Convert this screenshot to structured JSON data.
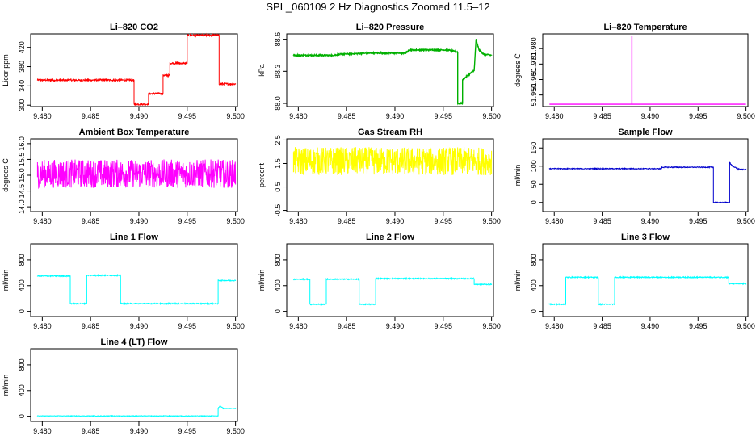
{
  "figure_title": "SPL_060109  2 Hz Diagnostics Zoomed 11.5–12",
  "chart_data": [
    {
      "type": "line",
      "title": "Li–820 CO2",
      "ylabel": "Licor ppm",
      "color": "#ff0000",
      "xlim": [
        9.4788,
        9.5002
      ],
      "ylim": [
        297,
        448
      ],
      "xticks": [
        "9.480",
        "9.485",
        "9.490",
        "9.495",
        "9.500"
      ],
      "yticks": [
        "300",
        "340",
        "380",
        "420"
      ],
      "x": [
        9.4795,
        9.4895,
        9.4895,
        9.491,
        9.491,
        9.4925,
        9.4925,
        9.4932,
        9.4932,
        9.495,
        9.495,
        9.4983,
        9.4983,
        9.5
      ],
      "y": [
        352,
        352,
        302,
        302,
        324,
        324,
        362,
        362,
        387,
        387,
        445,
        445,
        344,
        344
      ],
      "noise": 2
    },
    {
      "type": "line",
      "title": "Li–820 Pressure",
      "ylabel": "kPa",
      "color": "#00b000",
      "xlim": [
        9.4788,
        9.5002
      ],
      "ylim": [
        87.97,
        88.65
      ],
      "xticks": [
        "9.480",
        "9.485",
        "9.490",
        "9.495",
        "9.500"
      ],
      "yticks": [
        "88.0",
        "88.3",
        "88.6"
      ],
      "x": [
        9.4795,
        9.4835,
        9.4845,
        9.4875,
        9.4911,
        9.4915,
        9.4955,
        9.4965,
        9.4965,
        9.497,
        9.497,
        9.4982,
        9.4982,
        9.4984,
        9.4987,
        9.4992,
        9.5
      ],
      "y": [
        88.45,
        88.45,
        88.46,
        88.47,
        88.47,
        88.5,
        88.5,
        88.48,
        88.0,
        88.0,
        88.22,
        88.31,
        88.3,
        88.6,
        88.5,
        88.46,
        88.45
      ],
      "noise": 0.006
    },
    {
      "type": "line",
      "title": "Li–820 Temperature",
      "ylabel": "degrees C",
      "color": "#ff00ff",
      "xlim": [
        9.4788,
        9.5002
      ],
      "ylim": [
        51.9425,
        51.9895
      ],
      "xticks": [
        "9.480",
        "9.485",
        "9.490",
        "9.495",
        "9.500"
      ],
      "yticks": [
        "51.950",
        "51.960",
        "51.970",
        "51.980"
      ],
      "x": [
        9.4795,
        9.4881,
        9.4881,
        9.4881,
        9.5
      ],
      "y": [
        51.944,
        51.944,
        51.988,
        51.944,
        51.944
      ],
      "noise": 0
    },
    {
      "type": "line",
      "title": "Ambient Box Temperature",
      "ylabel": "degrees C",
      "color": "#ff00ff",
      "xlim": [
        9.4788,
        9.5002
      ],
      "ylim": [
        13.85,
        16.15
      ],
      "xticks": [
        "9.480",
        "9.485",
        "9.490",
        "9.495",
        "9.500"
      ],
      "yticks": [
        "14.0",
        "14.5",
        "15.0",
        "15.5",
        "16.0"
      ],
      "x": [
        9.4795,
        9.5
      ],
      "y": [
        15.05,
        15.05
      ],
      "noise": 0.45
    },
    {
      "type": "line",
      "title": "Gas Stream RH",
      "ylabel": "percent",
      "color": "#ffff00",
      "xlim": [
        9.4788,
        9.5002
      ],
      "ylim": [
        -0.55,
        2.55
      ],
      "xticks": [
        "9.480",
        "9.485",
        "9.490",
        "9.495",
        "9.500"
      ],
      "yticks": [
        "-0.5",
        "0.5",
        "1.5",
        "2.5"
      ],
      "x": [
        9.4795,
        9.5
      ],
      "y": [
        1.6,
        1.6
      ],
      "noise": 0.6
    },
    {
      "type": "line",
      "title": "Sample Flow",
      "ylabel": "ml/min",
      "color": "#0000cd",
      "xlim": [
        9.4788,
        9.5002
      ],
      "ylim": [
        -25,
        175
      ],
      "xticks": [
        "9.480",
        "9.485",
        "9.490",
        "9.495",
        "9.500"
      ],
      "yticks": [
        "0",
        "50",
        "100",
        "150"
      ],
      "x": [
        9.4795,
        9.4912,
        9.4912,
        9.4966,
        9.4966,
        9.4983,
        9.4983,
        9.4985,
        9.4992,
        9.5
      ],
      "y": [
        93,
        93,
        97,
        97,
        0,
        0,
        110,
        102,
        92,
        90
      ],
      "noise": 1.2
    },
    {
      "type": "line",
      "title": "Line 1 Flow",
      "ylabel": "ml/min",
      "color": "#00ffff",
      "xlim": [
        9.4788,
        9.5002
      ],
      "ylim": [
        -80,
        1050
      ],
      "xticks": [
        "9.480",
        "9.485",
        "9.490",
        "9.495",
        "9.500"
      ],
      "yticks": [
        "0",
        "400",
        "800"
      ],
      "x": [
        9.4795,
        9.4829,
        9.4829,
        9.4846,
        9.4846,
        9.4881,
        9.4881,
        9.4982,
        9.4982,
        9.5
      ],
      "y": [
        550,
        550,
        120,
        120,
        560,
        560,
        120,
        120,
        480,
        480
      ],
      "noise": 8
    },
    {
      "type": "line",
      "title": "Line 2 Flow",
      "ylabel": "ml/min",
      "color": "#00ffff",
      "xlim": [
        9.4788,
        9.5002
      ],
      "ylim": [
        -80,
        1050
      ],
      "xticks": [
        "9.480",
        "9.485",
        "9.490",
        "9.495",
        "9.500"
      ],
      "yticks": [
        "0",
        "400",
        "800"
      ],
      "x": [
        9.4795,
        9.4812,
        9.4812,
        9.4829,
        9.4829,
        9.4863,
        9.4863,
        9.488,
        9.488,
        9.4982,
        9.4982,
        9.5
      ],
      "y": [
        500,
        500,
        110,
        110,
        500,
        500,
        110,
        110,
        510,
        510,
        420,
        420
      ],
      "noise": 8
    },
    {
      "type": "line",
      "title": "Line 3 Flow",
      "ylabel": "ml/min",
      "color": "#00ffff",
      "xlim": [
        9.4788,
        9.5002
      ],
      "ylim": [
        -80,
        1050
      ],
      "xticks": [
        "9.480",
        "9.485",
        "9.490",
        "9.495",
        "9.500"
      ],
      "yticks": [
        "0",
        "400",
        "800"
      ],
      "x": [
        9.4795,
        9.4812,
        9.4812,
        9.4846,
        9.4846,
        9.4863,
        9.4863,
        9.4982,
        9.4982,
        9.5
      ],
      "y": [
        110,
        110,
        530,
        530,
        110,
        110,
        530,
        530,
        430,
        430
      ],
      "noise": 8
    },
    {
      "type": "line",
      "title": "Line 4 (LT) Flow",
      "ylabel": "ml/min",
      "color": "#00ffff",
      "xlim": [
        9.4788,
        9.5002
      ],
      "ylim": [
        -80,
        1050
      ],
      "xticks": [
        "9.480",
        "9.485",
        "9.490",
        "9.495",
        "9.500"
      ],
      "yticks": [
        "0",
        "400",
        "800"
      ],
      "x": [
        9.4795,
        9.4982,
        9.4982,
        9.4984,
        9.4988,
        9.5
      ],
      "y": [
        5,
        5,
        130,
        160,
        120,
        120
      ],
      "noise": 4
    }
  ]
}
